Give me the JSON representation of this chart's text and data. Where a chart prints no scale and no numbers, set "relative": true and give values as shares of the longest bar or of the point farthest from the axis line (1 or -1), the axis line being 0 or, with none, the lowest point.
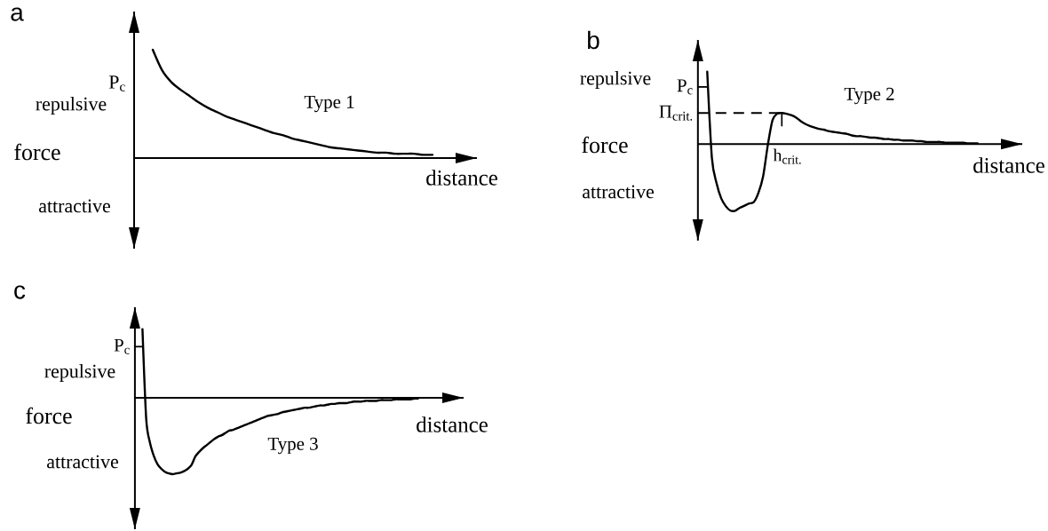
{
  "chart_data": [
    {
      "type": "line",
      "title": "a",
      "xlabel": "distance",
      "ylabel": "force",
      "relative": true,
      "categories": [
        null,
        null,
        null,
        null,
        null,
        null,
        null,
        null,
        null,
        null,
        null,
        null,
        null,
        null,
        null,
        null,
        null,
        null,
        null,
        null,
        null,
        null,
        null,
        null,
        null,
        null,
        null,
        null,
        null,
        null,
        null,
        null,
        null
      ],
      "series": [
        {
          "name": "Type 1",
          "color": "#000000",
          "values": [
            null,
            null,
            1.0,
            0.81,
            0.7,
            0.63,
            0.57,
            0.51,
            0.46,
            0.42,
            0.38,
            0.35,
            0.32,
            0.29,
            0.26,
            0.23,
            0.21,
            0.18,
            0.16,
            0.14,
            0.12,
            0.1,
            0.09,
            0.08,
            0.07,
            0.06,
            0.05,
            0.05,
            0.04,
            0.04,
            0.04,
            0.03,
            0.03
          ]
        }
      ],
      "annotations": [
        "repulsive",
        "attractive",
        "P$_{c}$"
      ]
    },
    {
      "type": "line",
      "title": "b",
      "xlabel": "distance",
      "ylabel": "force",
      "relative": true,
      "categories": [
        null,
        null,
        null,
        null,
        null,
        null,
        null,
        null,
        null,
        null,
        null,
        null,
        null,
        null,
        null,
        null,
        null,
        null,
        null,
        null,
        null,
        null,
        null,
        null,
        null,
        null,
        null,
        null,
        null,
        null,
        null,
        null,
        null,
        null,
        null,
        null,
        null,
        null,
        null,
        null,
        null,
        null,
        null,
        null,
        null,
        null,
        null,
        null,
        null,
        null,
        null,
        null,
        null,
        null,
        null,
        null,
        null,
        null,
        null,
        null,
        null
      ],
      "series": [
        {
          "name": "Type 2",
          "color": "#000000",
          "values": [
            null,
            null,
            1.0,
            -0.19,
            -0.54,
            -0.75,
            -0.86,
            -0.92,
            -0.92,
            -0.88,
            -0.85,
            -0.82,
            -0.8,
            -0.67,
            -0.44,
            -0.01,
            0.33,
            0.42,
            0.43,
            0.42,
            0.4,
            0.37,
            0.32,
            0.28,
            0.25,
            0.23,
            0.21,
            0.2,
            0.18,
            0.17,
            0.16,
            0.15,
            0.14,
            0.12,
            0.11,
            0.11,
            0.1,
            0.09,
            0.09,
            0.08,
            0.07,
            0.07,
            0.06,
            0.06,
            0.05,
            0.05,
            0.05,
            0.04,
            0.04,
            0.03,
            0.03,
            0.03,
            0.03,
            0.02,
            0.02,
            0.02,
            0.02,
            0.02,
            0.01,
            0.01,
            0.01
          ]
        }
      ],
      "ref_lines": [
        {
          "axis": "y",
          "value": 0.79,
          "label": "P$_{c}$"
        },
        {
          "axis": "y",
          "value": 0.43,
          "label": "Π$_{crit.}$",
          "line_style": "dashed"
        }
      ],
      "annotations": [
        "repulsive",
        "attractive",
        {
          "text": "h$_{crit.}$",
          "y": 0.43
        }
      ]
    },
    {
      "type": "line",
      "title": "c",
      "xlabel": "distance",
      "ylabel": "force",
      "relative": true,
      "categories": [
        null,
        null,
        null,
        null,
        null,
        null,
        null,
        null,
        null,
        null,
        null,
        null,
        null,
        null,
        null,
        null,
        null,
        null,
        null,
        null,
        null,
        null,
        null,
        null,
        null,
        null,
        null,
        null,
        null,
        null,
        null,
        null,
        null,
        null,
        null,
        null,
        null,
        null,
        null,
        null,
        null,
        null,
        null,
        null,
        null,
        null,
        null,
        null,
        null,
        null,
        null,
        null,
        null,
        null,
        null,
        null,
        null,
        null,
        null,
        null,
        null,
        null,
        null,
        null,
        null,
        null,
        null,
        null,
        null,
        null,
        null,
        null,
        null,
        null,
        null,
        null
      ],
      "series": [
        {
          "name": "Type 3",
          "color": "#000000",
          "values": [
            null,
            null,
            0.9,
            -0.28,
            -0.59,
            -0.76,
            -0.87,
            -0.93,
            -0.97,
            -0.99,
            -1.0,
            -0.99,
            -0.98,
            -0.96,
            -0.93,
            -0.88,
            -0.77,
            -0.71,
            -0.66,
            -0.62,
            -0.58,
            -0.54,
            -0.51,
            -0.49,
            -0.46,
            -0.43,
            -0.42,
            -0.4,
            -0.38,
            -0.36,
            -0.34,
            -0.32,
            -0.3,
            -0.28,
            -0.26,
            -0.24,
            -0.23,
            -0.22,
            -0.21,
            -0.19,
            -0.18,
            -0.17,
            -0.16,
            -0.15,
            -0.14,
            -0.13,
            -0.13,
            -0.12,
            -0.11,
            -0.1,
            -0.1,
            -0.09,
            -0.08,
            -0.08,
            -0.07,
            -0.07,
            -0.07,
            -0.06,
            -0.05,
            -0.05,
            -0.05,
            -0.04,
            -0.04,
            -0.04,
            -0.04,
            -0.03,
            -0.03,
            -0.03,
            -0.03,
            -0.02,
            -0.02,
            -0.02,
            -0.02,
            -0.02,
            -0.01,
            -0.01
          ]
        }
      ],
      "ref_lines": [
        {
          "axis": "y",
          "value": 0.67,
          "label": "P$_{c}$"
        }
      ],
      "annotations": [
        "repulsive",
        "attractive"
      ]
    }
  ]
}
